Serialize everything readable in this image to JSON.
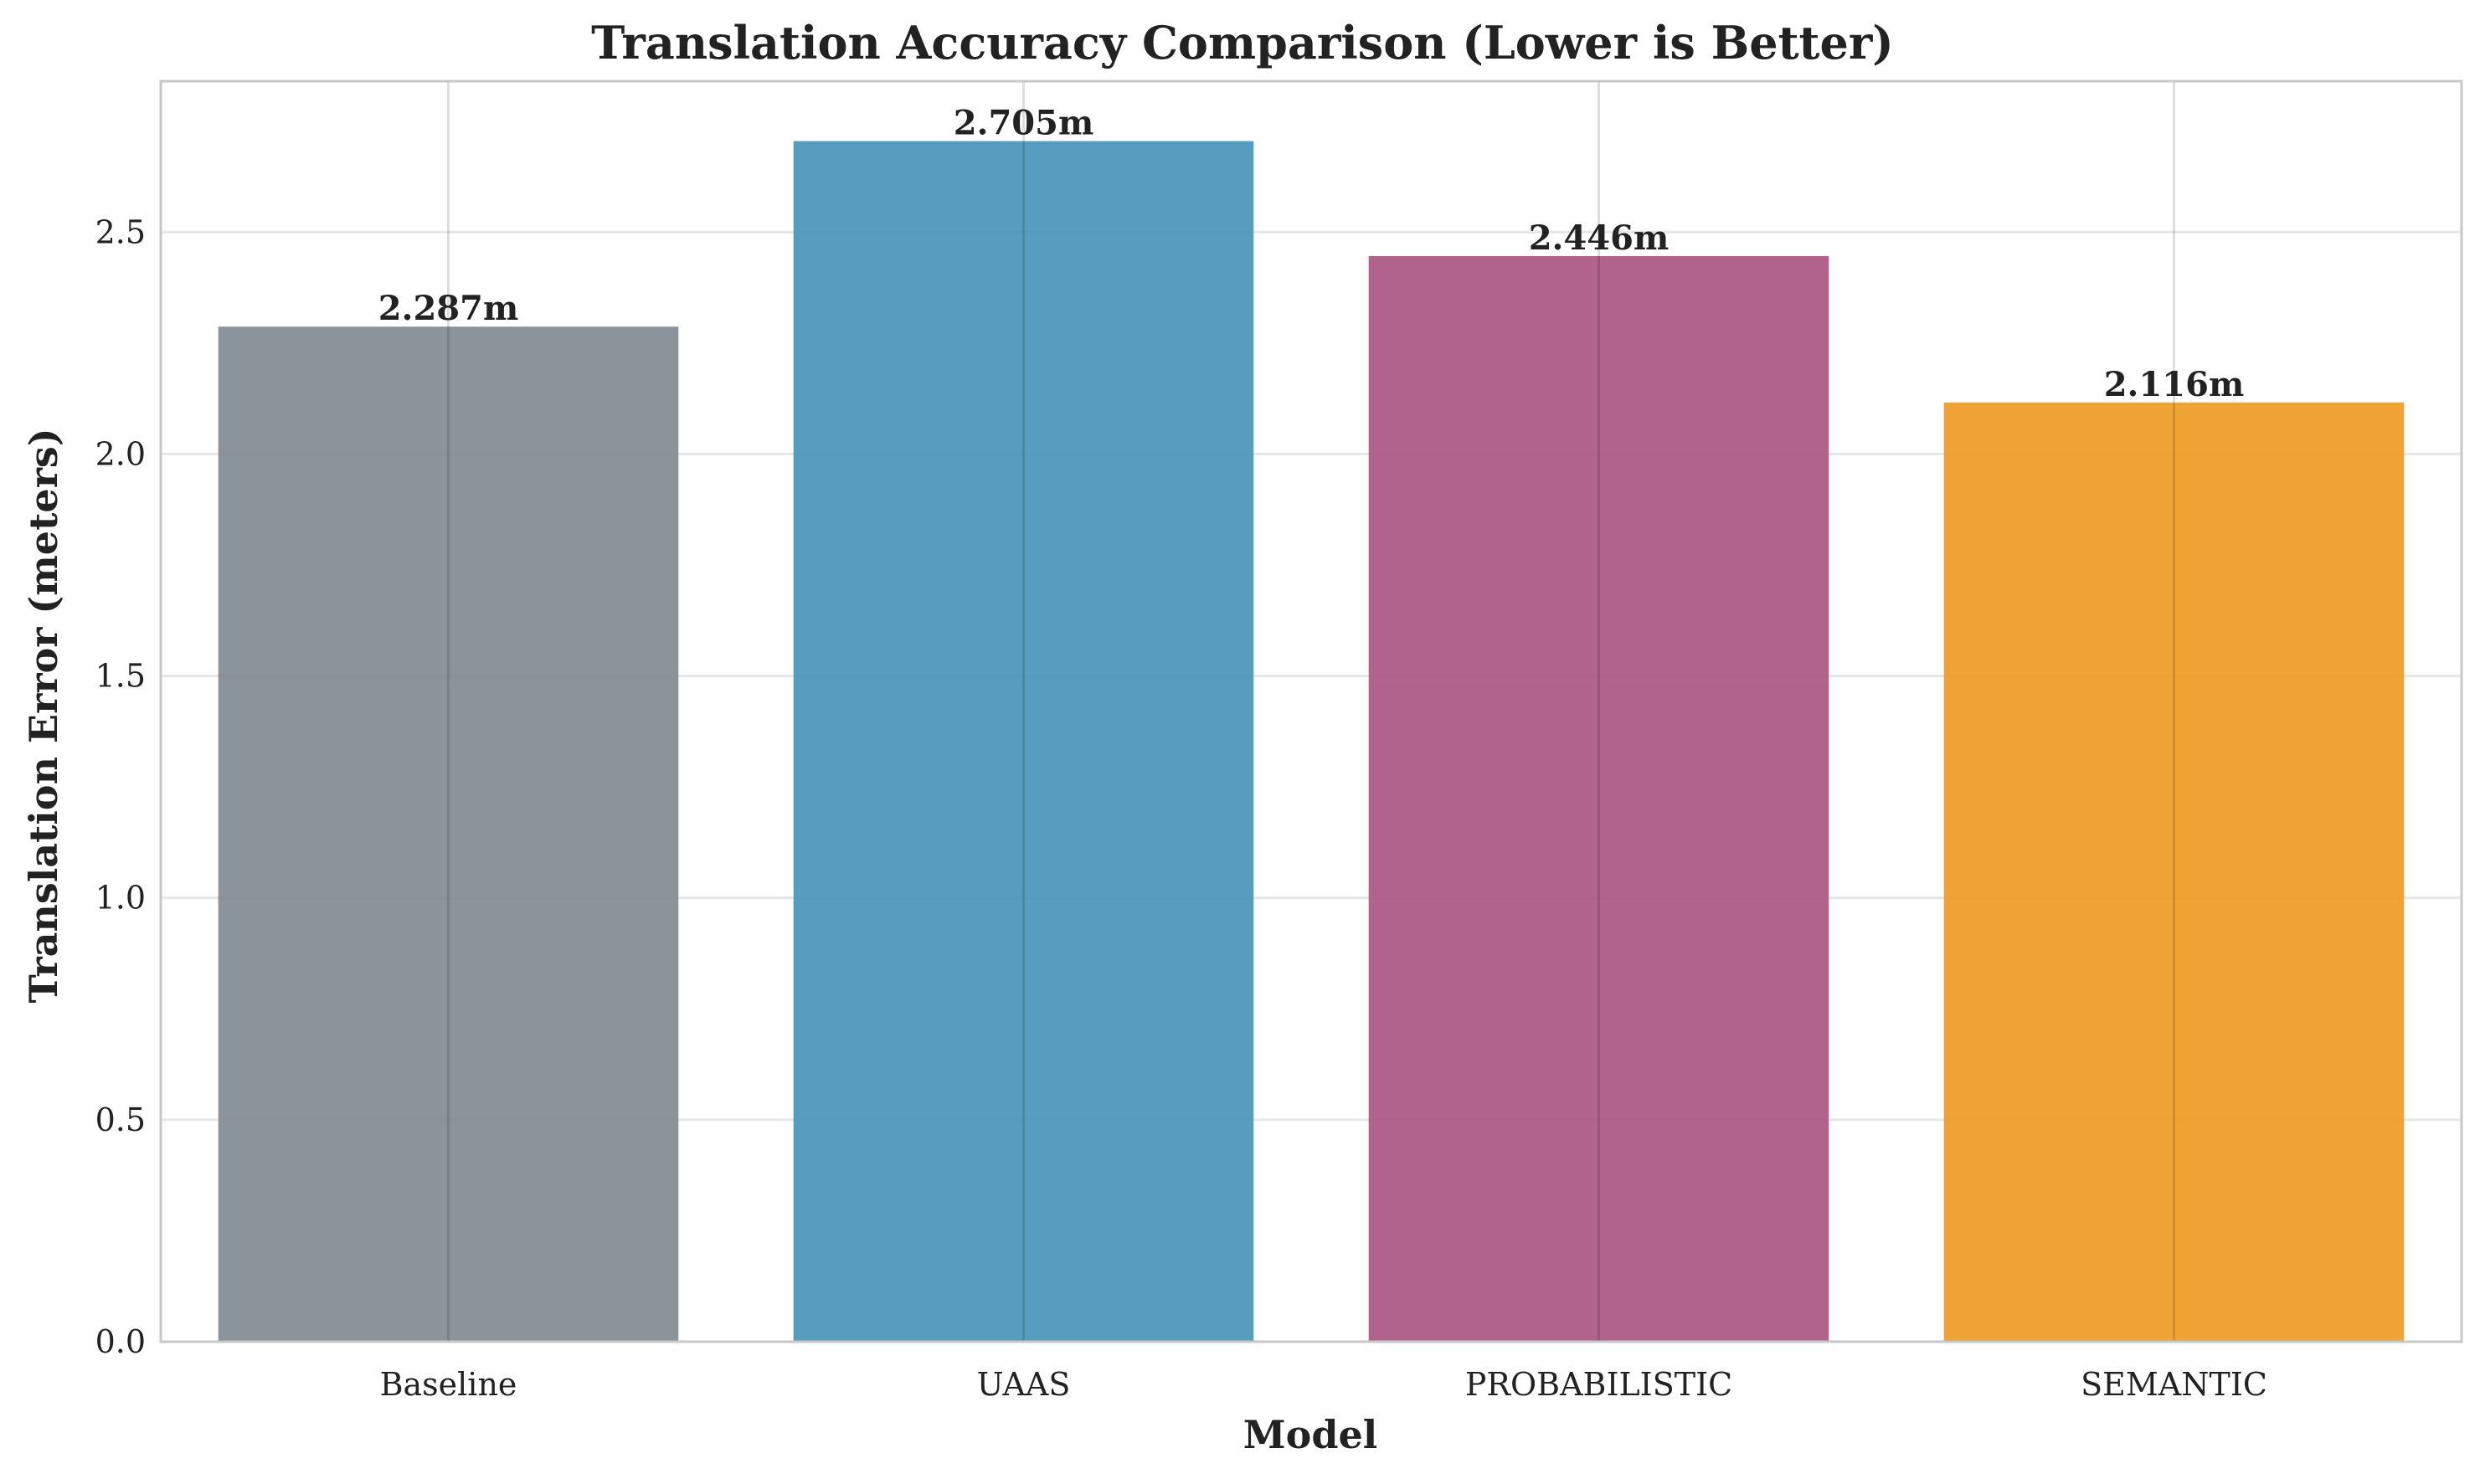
{
  "chart_data": {
    "type": "bar",
    "title": "Translation Accuracy Comparison (Lower is Better)",
    "xlabel": "Model",
    "ylabel": "Translation Error (meters)",
    "categories": [
      "Baseline",
      "UAAS",
      "PROBABILISTIC",
      "SEMANTIC"
    ],
    "values": [
      2.287,
      2.705,
      2.446,
      2.116
    ],
    "value_labels": [
      "2.287m",
      "2.705m",
      "2.446m",
      "2.116m"
    ],
    "colors": [
      "#7e8790",
      "#4592b8",
      "#a9527f",
      "#f09a20"
    ],
    "ylim": [
      0,
      2.84
    ],
    "yticks": [
      0.0,
      0.5,
      1.0,
      1.5,
      2.0,
      2.5
    ],
    "ytick_labels": [
      "0.0",
      "0.5",
      "1.0",
      "1.5",
      "2.0",
      "2.5"
    ],
    "grid": true,
    "legend": "none"
  }
}
